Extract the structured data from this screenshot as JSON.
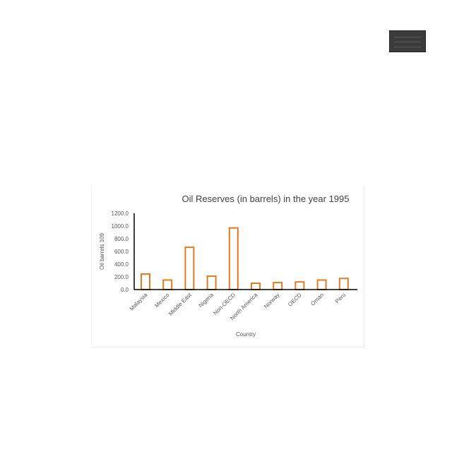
{
  "thumbnail": {
    "icon": "chart-thumbnail-icon"
  },
  "chart_data": {
    "type": "bar",
    "title": "Oil Reserves (in barrels) in the year 1995",
    "xlabel": "Country",
    "ylabel": "Oil barrels 109",
    "categories": [
      "Malaysia",
      "Mexico",
      "Middle East",
      "Nigeria",
      "Non-OECD",
      "North America",
      "Norway",
      "OECD",
      "Oman",
      "Peru"
    ],
    "values": [
      245,
      150,
      665,
      210,
      970,
      100,
      110,
      120,
      150,
      175
    ],
    "ylim": [
      0,
      1200
    ],
    "yticks": [
      "0.0",
      "200.0",
      "400.0",
      "600.0",
      "800.0",
      "1000.0",
      "1200.0"
    ],
    "grid": false,
    "colors": {
      "bar_stroke": "#e07b26",
      "bar_fill": "#ffffff",
      "axis": "#000000",
      "text": "#595959",
      "title": "#404040"
    }
  }
}
